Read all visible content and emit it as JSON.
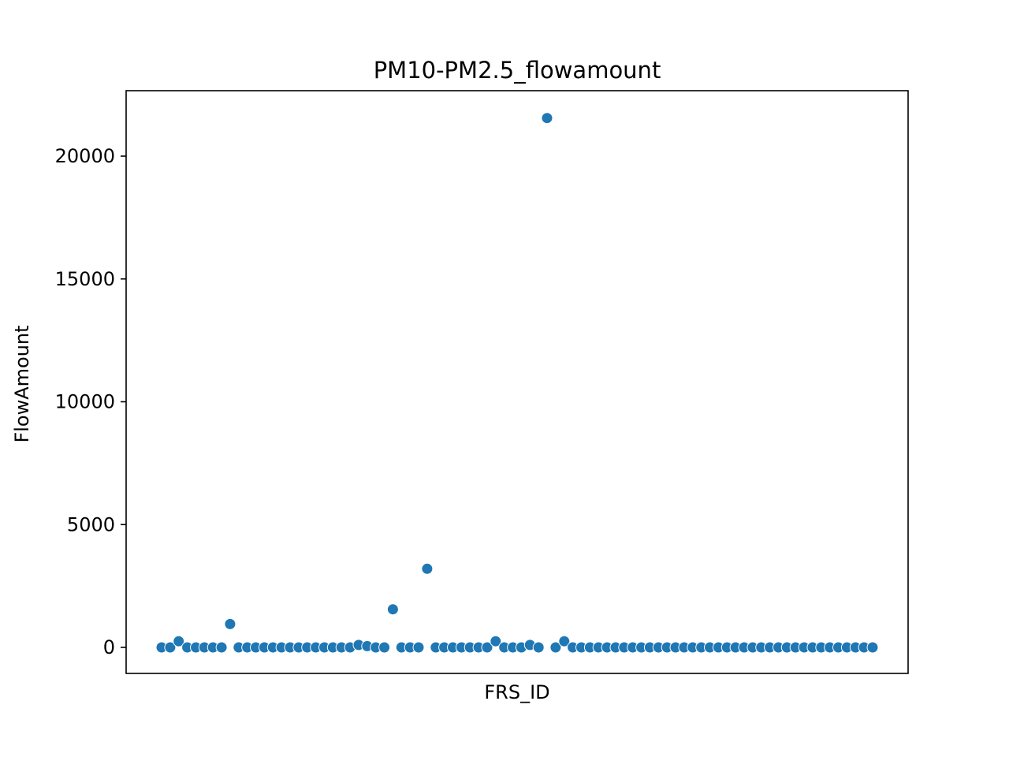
{
  "chart_data": {
    "type": "scatter",
    "title": "PM10-PM2.5_flowamount",
    "xlabel": "FRS_ID",
    "ylabel": "FlowAmount",
    "ylim": [
      -1050,
      22600
    ],
    "yticks": [
      0,
      5000,
      10000,
      15000,
      20000
    ],
    "grid": false,
    "point_color": "#1f77b4",
    "values": [
      0,
      0,
      250,
      0,
      0,
      0,
      0,
      0,
      950,
      0,
      0,
      0,
      0,
      0,
      0,
      0,
      0,
      0,
      0,
      0,
      0,
      0,
      0,
      100,
      50,
      0,
      0,
      1550,
      0,
      0,
      0,
      3200,
      0,
      0,
      0,
      0,
      0,
      0,
      0,
      250,
      0,
      0,
      0,
      100,
      0,
      21550,
      0,
      250,
      0,
      0,
      0,
      0,
      0,
      0,
      0,
      0,
      0,
      0,
      0,
      0,
      0,
      0,
      0,
      0,
      0,
      0,
      0,
      0,
      0,
      0,
      0,
      0,
      0,
      0,
      0,
      0,
      0,
      0,
      0,
      0,
      0,
      0,
      0,
      0
    ]
  }
}
